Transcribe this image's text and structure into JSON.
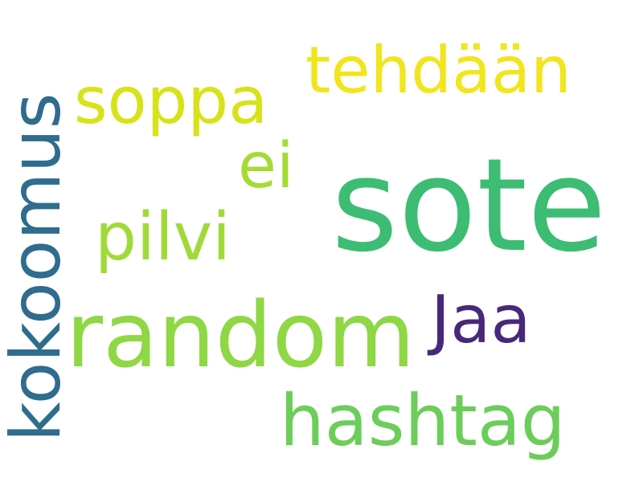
{
  "words": {
    "sote": {
      "text": "sote",
      "color": "#3dbc74"
    },
    "random": {
      "text": "random",
      "color": "#8fd744"
    },
    "kokoomus": {
      "text": "kokoomus",
      "color": "#2f6c8e"
    },
    "hashtag": {
      "text": "hashtag",
      "color": "#6ccd5a"
    },
    "tehdaan": {
      "text": "tehdään",
      "color": "#f1e51d"
    },
    "soppa": {
      "text": "soppa",
      "color": "#d8e219"
    },
    "pilvi": {
      "text": "pilvi",
      "color": "#a0da39"
    },
    "ei": {
      "text": "ei",
      "color": "#a5db36"
    },
    "jaa": {
      "text": "Jaa",
      "color": "#482878"
    }
  }
}
